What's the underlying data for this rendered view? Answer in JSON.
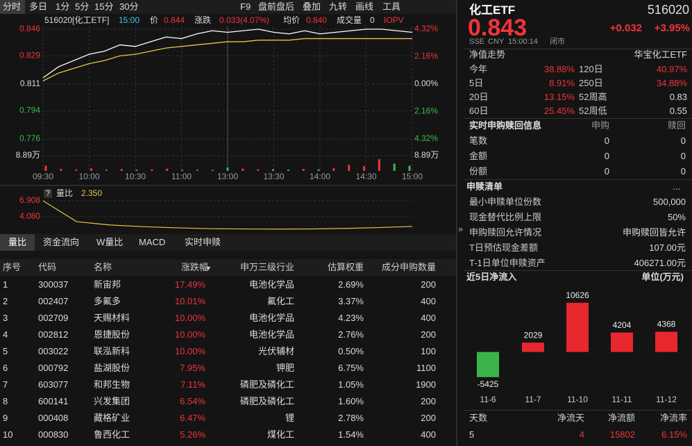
{
  "toolbar": {
    "left": [
      "分时",
      "多日",
      "1分",
      "5分",
      "15分",
      "30分"
    ],
    "right": [
      "F9",
      "盘前盘后",
      "叠加",
      "九转",
      "画线",
      "工具"
    ]
  },
  "quote_chart": {
    "type": "line",
    "code": "516020[化工ETF]",
    "time": "15:00",
    "price_label": "价",
    "price": "0.844",
    "change_label": "涨跌",
    "change": "0.033(4.07%)",
    "avg_label": "均价",
    "avg": "0.840",
    "volume_label": "成交量",
    "volume_value": "0",
    "iopv": "IOPV",
    "xticks": [
      "09:30",
      "10:00",
      "10:30",
      "11:00",
      "13:00",
      "13:30",
      "14:00",
      "14:30",
      "15:00"
    ],
    "ylim": [
      0.776,
      0.846
    ],
    "yticks": [
      0.846,
      0.829,
      0.811,
      0.794,
      0.776
    ],
    "y2lim": [
      -4.32,
      4.32
    ],
    "y2ticks": [
      {
        "value": 4.32,
        "label": "4.32%"
      },
      {
        "value": 2.16,
        "label": "2.16%"
      },
      {
        "value": 0,
        "label": "0.00%"
      },
      {
        "value": -2.16,
        "label": "2.16%"
      },
      {
        "value": -4.32,
        "label": "4.32%"
      }
    ],
    "series": [
      {
        "color": "#ffffff",
        "values": [
          0.815,
          0.822,
          0.826,
          0.83,
          0.832,
          0.836,
          0.835,
          0.838,
          0.841,
          0.84,
          0.843,
          0.845,
          0.844,
          0.845,
          0.846,
          0.844,
          0.843,
          0.845,
          0.843,
          0.844,
          0.845,
          0.846,
          0.846,
          0.845,
          0.844
        ]
      },
      {
        "color": "#e8c547",
        "values": [
          0.813,
          0.818,
          0.821,
          0.824,
          0.826,
          0.829,
          0.83,
          0.832,
          0.834,
          0.835,
          0.836,
          0.837,
          0.838,
          0.838,
          0.839,
          0.839,
          0.839,
          0.84,
          0.84,
          0.84,
          0.84,
          0.84,
          0.84,
          0.84,
          0.84
        ]
      }
    ],
    "volume_bars": {
      "ylim": [
        0,
        8.89
      ],
      "yticks": [
        {
          "value": 8.89,
          "label": "8.89万"
        }
      ],
      "values": [
        3.1,
        1.2,
        0.9,
        1.5,
        0.8,
        1.1,
        0.7,
        0.9,
        1.3,
        0.6,
        0.8,
        0.7,
        2.0,
        1.4,
        0.9,
        1.0,
        0.8,
        1.2,
        0.9,
        1.6,
        3.5,
        2.8,
        6.8,
        4.2,
        3.0
      ]
    }
  },
  "ratio_chart": {
    "type": "line",
    "help": "?",
    "label": "量比",
    "value": "2.350",
    "ylim": [
      1.6,
      6.908
    ],
    "yticks": [
      6.908,
      {
        "value": 4.08,
        "label": "4.080"
      }
    ],
    "color": "#e8c547",
    "values": [
      6.908,
      3.2,
      2.6,
      2.3,
      2.1,
      1.95,
      1.9,
      1.88,
      1.9,
      2.0,
      2.15,
      2.35
    ]
  },
  "tabs": [
    "量比",
    "资金流向",
    "W量比",
    "MACD",
    "实时申赎"
  ],
  "table": {
    "headers": [
      "序号",
      "代码",
      "名称",
      "涨跌幅",
      "申万三级行业",
      "估算权重",
      "成分申购数量"
    ],
    "rows": [
      [
        "1",
        "300037",
        "新宙邦",
        "17.49%",
        "电池化学品",
        "2.69%",
        "200"
      ],
      [
        "2",
        "002407",
        "多氟多",
        "10.01%",
        "氟化工",
        "3.37%",
        "400"
      ],
      [
        "3",
        "002709",
        "天赐材料",
        "10.00%",
        "电池化学品",
        "4.23%",
        "400"
      ],
      [
        "4",
        "002812",
        "恩捷股份",
        "10.00%",
        "电池化学品",
        "2.76%",
        "200"
      ],
      [
        "5",
        "003022",
        "联泓新科",
        "10.00%",
        "光伏辅材",
        "0.50%",
        "100"
      ],
      [
        "6",
        "000792",
        "盐湖股份",
        "7.95%",
        "钾肥",
        "6.75%",
        "1100"
      ],
      [
        "7",
        "603077",
        "和邦生物",
        "7.11%",
        "磷肥及磷化工",
        "1.05%",
        "1900"
      ],
      [
        "8",
        "600141",
        "兴发集团",
        "6.54%",
        "磷肥及磷化工",
        "1.60%",
        "200"
      ],
      [
        "9",
        "000408",
        "藏格矿业",
        "6.47%",
        "锂",
        "2.78%",
        "200"
      ],
      [
        "10",
        "000830",
        "鲁西化工",
        "5.26%",
        "煤化工",
        "1.54%",
        "400"
      ]
    ]
  },
  "panel": {
    "name": "化工ETF",
    "code": "516020",
    "price": "0.843",
    "change": "+0.032",
    "change_pct": "+3.95%",
    "exchange": "SSE",
    "currency": "CNY",
    "time": "15:00:14",
    "status": "闭市",
    "nav_title": "净值走势",
    "nav_fund": "华宝化工ETF",
    "stats": [
      [
        "今年",
        "38.88%",
        "120日",
        "40.97%"
      ],
      [
        "5日",
        "8.91%",
        "250日",
        "34.88%"
      ],
      [
        "20日",
        "13.15%",
        "52周高",
        "0.83"
      ],
      [
        "60日",
        "25.45%",
        "52周低",
        "0.55"
      ]
    ],
    "realtime": {
      "title": "实时申购赎回信息",
      "headers": [
        "申购",
        "赎回"
      ],
      "rows": [
        [
          "笔数",
          "0",
          "0"
        ],
        [
          "金额",
          "0",
          "0"
        ],
        [
          "份额",
          "0",
          "0"
        ]
      ]
    },
    "list": {
      "title": "申赎清单",
      "more": "...",
      "rows": [
        [
          "最小申赎单位份数",
          "500,000"
        ],
        [
          "现金替代比例上限",
          "50%"
        ],
        [
          "申购赎回允许情况",
          "申购赎回皆允许"
        ],
        [
          "T日预估现金差额",
          "107.00元"
        ],
        [
          "T-1日单位申赎资产",
          "406271.00元"
        ]
      ]
    }
  },
  "flow_chart": {
    "type": "bar",
    "title": "近5日净流入",
    "unit": "单位(万元)",
    "categories": [
      "11-6",
      "11-7",
      "11-10",
      "11-11",
      "11-12"
    ],
    "values": [
      -5425,
      2029,
      10626,
      4204,
      4368
    ],
    "ylim": [
      -8000,
      13000
    ],
    "colors": {
      "up": "#e8272f",
      "down": "#3bb54a"
    },
    "summary": {
      "headers": [
        "天数",
        "净流天",
        "净流额",
        "净流率"
      ],
      "values": [
        "5",
        "4",
        "15802",
        "6.15%"
      ]
    }
  }
}
